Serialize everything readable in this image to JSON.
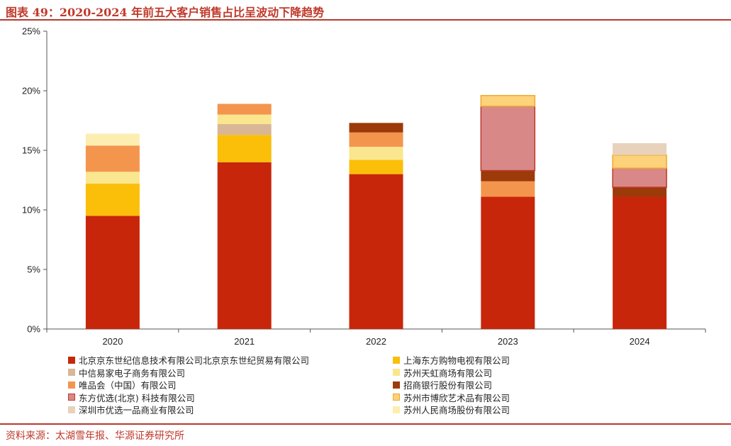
{
  "title": "图表 49：2020-2024 年前五大客户销售占比呈波动下降趋势",
  "source": "资料来源：太湖雪年报、华源证券研究所",
  "chart_data": {
    "type": "bar",
    "stacked": true,
    "categories": [
      "2020",
      "2021",
      "2022",
      "2023",
      "2024"
    ],
    "ylim": [
      0,
      25
    ],
    "yticks": [
      "0%",
      "5%",
      "10%",
      "15%",
      "20%",
      "25%"
    ],
    "ytick_values": [
      0,
      5,
      10,
      15,
      20,
      25
    ],
    "grid": false,
    "legend_position": "bottom",
    "series": [
      {
        "name": "北京京东世纪信息技术有限公司北京京东世纪贸易有限公司",
        "color": "#c8260a",
        "values": [
          9.5,
          14.0,
          13.0,
          11.1,
          11.1
        ]
      },
      {
        "name": "上海东方购物电视有限公司",
        "color": "#fbbf0a",
        "values": [
          2.7,
          2.3,
          1.2,
          0,
          0
        ]
      },
      {
        "name": "中信易家电子商务有限公司",
        "color": "#d8b696",
        "values": [
          0,
          0.9,
          0,
          0,
          0
        ]
      },
      {
        "name": "苏州天虹商场有限公司",
        "color": "#fae68e",
        "values": [
          1.0,
          0.8,
          1.1,
          0,
          0
        ]
      },
      {
        "name": "唯品会（中国）有限公司",
        "color": "#f4954d",
        "values": [
          2.2,
          0.9,
          1.2,
          1.3,
          0
        ]
      },
      {
        "name": "招商银行股份有限公司",
        "color": "#9c3a0a",
        "values": [
          0,
          0,
          0.8,
          0.9,
          0.8
        ]
      },
      {
        "name": "东方优选(北京) 科技有限公司",
        "color": "#d98888",
        "values": [
          0,
          0,
          0,
          5.4,
          1.6
        ]
      },
      {
        "name": "苏州市博欣艺术品有限公司",
        "color": "#fcd27a",
        "values": [
          0,
          0,
          0,
          0.9,
          1.1
        ]
      },
      {
        "name": "深圳市优选一品商业有限公司",
        "color": "#e8d2bc",
        "values": [
          0,
          0,
          0,
          0,
          1.0
        ]
      },
      {
        "name": "苏州人民商场股份有限公司",
        "color": "#fbeeb0",
        "values": [
          1.0,
          0,
          0,
          0,
          0
        ]
      }
    ]
  }
}
